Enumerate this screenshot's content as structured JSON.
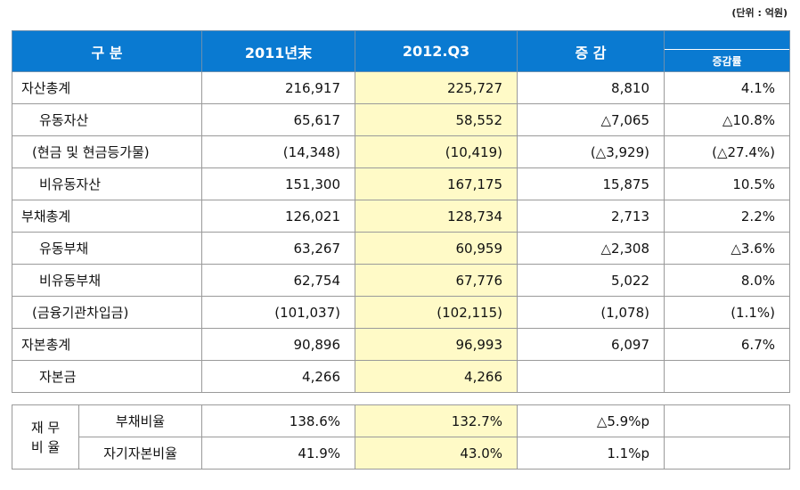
{
  "unit_note": "(단위 : 억원)",
  "headers": {
    "category": "구    분",
    "col_2011": "2011년末",
    "col_2012": "2012.Q3",
    "change": "증 감",
    "change_rate": "증감률"
  },
  "rows": [
    {
      "label": "자산총계",
      "v2011": "216,917",
      "v2012": "225,727",
      "chg": "8,810",
      "rate": "4.1%"
    },
    {
      "label": "유동자산",
      "v2011": "65,617",
      "v2012": "58,552",
      "chg": "△7,065",
      "rate": "△10.8%"
    },
    {
      "label": "(현금 및 현금등가물)",
      "v2011": "(14,348)",
      "v2012": "(10,419)",
      "chg": "(△3,929)",
      "rate": "(△27.4%)"
    },
    {
      "label": "비유동자산",
      "v2011": "151,300",
      "v2012": "167,175",
      "chg": "15,875",
      "rate": "10.5%"
    },
    {
      "label": "부채총계",
      "v2011": "126,021",
      "v2012": "128,734",
      "chg": "2,713",
      "rate": "2.2%"
    },
    {
      "label": "유동부채",
      "v2011": "63,267",
      "v2012": "60,959",
      "chg": "△2,308",
      "rate": "△3.6%"
    },
    {
      "label": "비유동부채",
      "v2011": "62,754",
      "v2012": "67,776",
      "chg": "5,022",
      "rate": "8.0%"
    },
    {
      "label": "(금융기관차입금)",
      "v2011": "(101,037)",
      "v2012": "(102,115)",
      "chg": "(1,078)",
      "rate": "(1.1%)"
    },
    {
      "label": "자본총계",
      "v2011": "90,896",
      "v2012": "96,993",
      "chg": "6,097",
      "rate": "6.7%"
    },
    {
      "label": "자본금",
      "v2011": "4,266",
      "v2012": "4,266",
      "chg": "",
      "rate": ""
    }
  ],
  "ratios": {
    "group_label_line1": "재 무",
    "group_label_line2": "비 율",
    "items": [
      {
        "label": "부채비율",
        "v2011": "138.6%",
        "v2012": "132.7%",
        "chg": "△5.9%p",
        "rate": ""
      },
      {
        "label": "자기자본비율",
        "v2011": "41.9%",
        "v2012": "43.0%",
        "chg": "1.1%p",
        "rate": ""
      }
    ]
  }
}
